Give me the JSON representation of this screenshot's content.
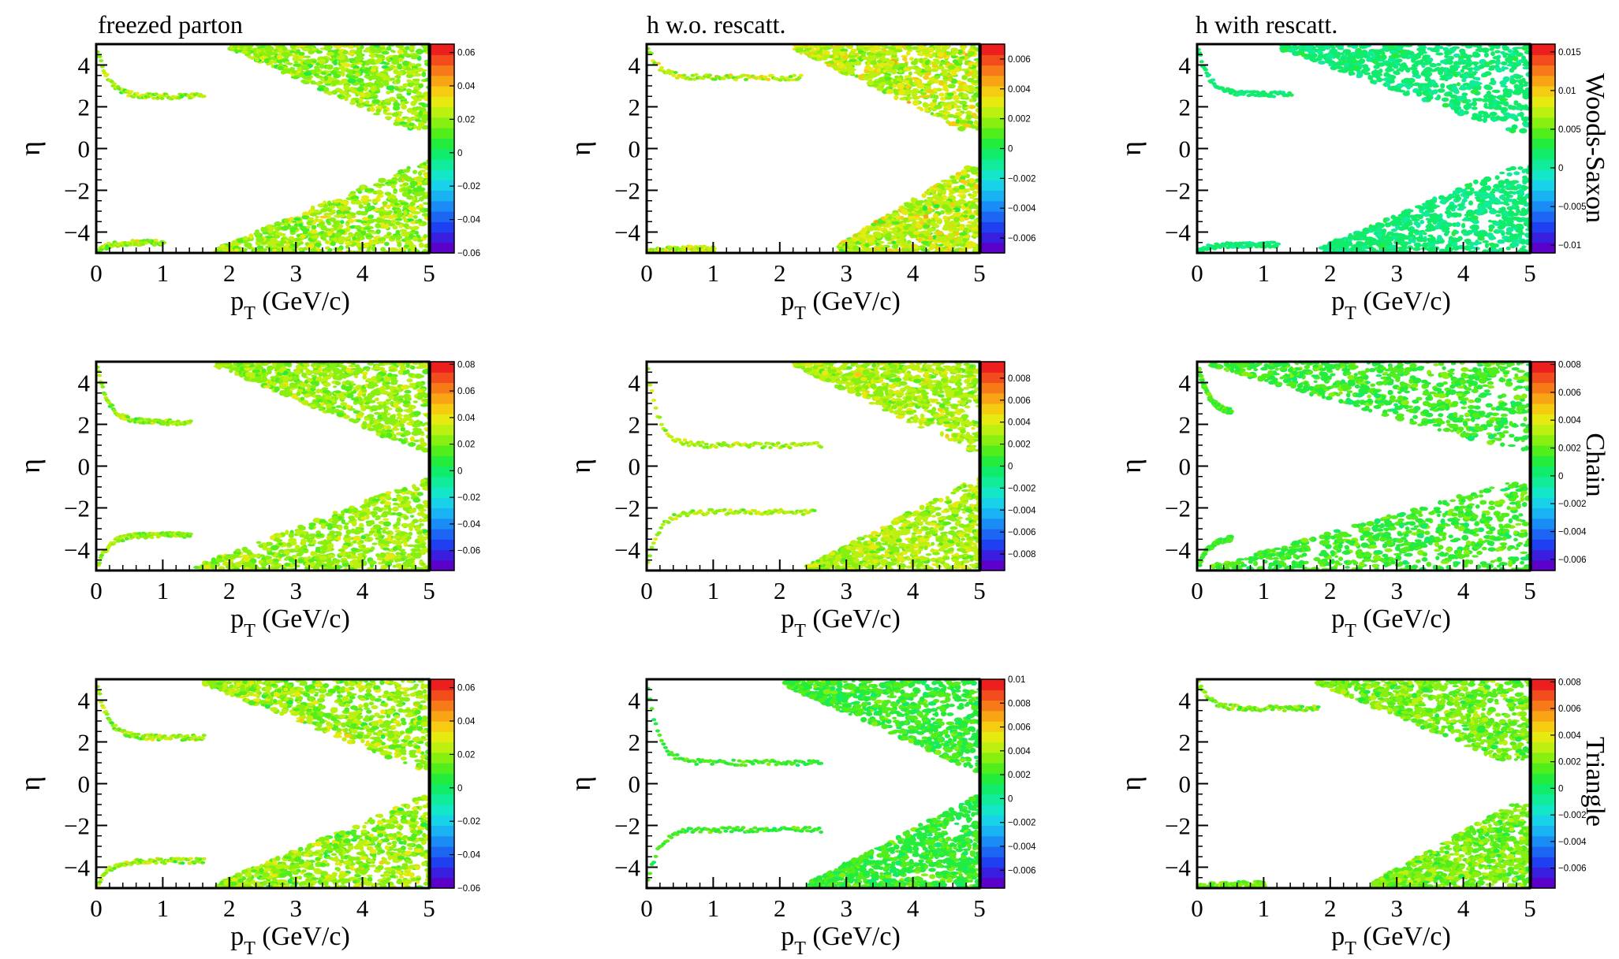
{
  "figure": {
    "column_titles": [
      "freezed parton",
      "h w.o. rescatt.",
      "h with rescatt."
    ],
    "row_labels": [
      "Woods-Saxon",
      "Chain",
      "Triangle"
    ]
  },
  "chart_data": [
    {
      "type": "heatmap",
      "panel": "freezed parton / Woods-Saxon",
      "xlabel": "p",
      "xlabel_sub": "T",
      "xlabel_unit": "(GeV/c)",
      "ylabel": "η",
      "xlim": [
        0,
        5
      ],
      "ylim": [
        -5,
        5
      ],
      "x_ticks": [
        "0",
        "1",
        "2",
        "3",
        "4",
        "5"
      ],
      "y_ticks": [
        "4",
        "2",
        "0",
        "−2",
        "−4"
      ],
      "colorbar": {
        "min": -0.06,
        "max": 0.065,
        "ticks": [
          "0.06",
          "0.04",
          "0.02",
          "0",
          "−0.02",
          "−0.04",
          "−0.06"
        ]
      },
      "pattern": {
        "line_top_y": 2.5,
        "line_top_x_end": 1.6,
        "line_bot_y": -4.5,
        "line_bot_x_end": 1.0,
        "bulk_start_top": 2.0,
        "bulk_start_bot": 1.8,
        "gap": 0.5,
        "mean": 0.02,
        "spread": 0.012
      }
    },
    {
      "type": "heatmap",
      "panel": "h w.o. rescatt. / Woods-Saxon",
      "xlabel": "p",
      "xlabel_sub": "T",
      "xlabel_unit": "(GeV/c)",
      "ylabel": "η",
      "xlim": [
        0,
        5
      ],
      "ylim": [
        -5,
        5
      ],
      "x_ticks": [
        "0",
        "1",
        "2",
        "3",
        "4",
        "5"
      ],
      "y_ticks": [
        "4",
        "2",
        "0",
        "−2",
        "−4"
      ],
      "colorbar": {
        "min": -0.007,
        "max": 0.007,
        "ticks": [
          "0.006",
          "0.004",
          "0.002",
          "0",
          "−0.002",
          "−0.004",
          "−0.006"
        ]
      },
      "pattern": {
        "line_top_y": 3.4,
        "line_top_x_end": 2.3,
        "line_bot_y": -4.8,
        "line_bot_x_end": 1.0,
        "bulk_start_top": 2.2,
        "bulk_start_bot": 2.8,
        "gap": 0.9,
        "mean": 0.0025,
        "spread": 0.0015
      }
    },
    {
      "type": "heatmap",
      "panel": "h with rescatt. / Woods-Saxon",
      "xlabel": "p",
      "xlabel_sub": "T",
      "xlabel_unit": "(GeV/c)",
      "ylabel": "η",
      "xlim": [
        0,
        5
      ],
      "ylim": [
        -5,
        5
      ],
      "x_ticks": [
        "0",
        "1",
        "2",
        "3",
        "4",
        "5"
      ],
      "y_ticks": [
        "4",
        "2",
        "0",
        "−2",
        "−4"
      ],
      "colorbar": {
        "min": -0.011,
        "max": 0.016,
        "ticks": [
          "0.015",
          "0.01",
          "0.005",
          "0",
          "−0.005",
          "−0.01"
        ]
      },
      "pattern": {
        "line_top_y": 2.6,
        "line_top_x_end": 1.4,
        "line_bot_y": -4.6,
        "line_bot_x_end": 1.2,
        "bulk_start_top": 1.2,
        "bulk_start_bot": 1.8,
        "gap": 0.8,
        "mean": 0.0015,
        "spread": 0.0012
      }
    },
    {
      "type": "heatmap",
      "panel": "freezed parton / Chain",
      "xlabel": "p",
      "xlabel_sub": "T",
      "xlabel_unit": "(GeV/c)",
      "ylabel": "η",
      "xlim": [
        0,
        5
      ],
      "ylim": [
        -5,
        5
      ],
      "x_ticks": [
        "0",
        "1",
        "2",
        "3",
        "4",
        "5"
      ],
      "y_ticks": [
        "4",
        "2",
        "0",
        "−2",
        "−4"
      ],
      "colorbar": {
        "min": -0.075,
        "max": 0.082,
        "ticks": [
          "0.08",
          "0.06",
          "0.04",
          "0.02",
          "0",
          "−0.02",
          "−0.04",
          "−0.06"
        ]
      },
      "pattern": {
        "line_top_y": 2.1,
        "line_top_x_end": 1.4,
        "line_bot_y": -3.3,
        "line_bot_x_end": 1.4,
        "bulk_start_top": 1.8,
        "bulk_start_bot": 1.5,
        "gap": 0.6,
        "mean": 0.025,
        "spread": 0.012
      }
    },
    {
      "type": "heatmap",
      "panel": "h w.o. rescatt. / Chain",
      "xlabel": "p",
      "xlabel_sub": "T",
      "xlabel_unit": "(GeV/c)",
      "ylabel": "η",
      "xlim": [
        0,
        5
      ],
      "ylim": [
        -5,
        5
      ],
      "x_ticks": [
        "0",
        "1",
        "2",
        "3",
        "4",
        "5"
      ],
      "y_ticks": [
        "4",
        "2",
        "0",
        "−2",
        "−4"
      ],
      "colorbar": {
        "min": -0.0095,
        "max": 0.0095,
        "ticks": [
          "0.008",
          "0.006",
          "0.004",
          "0.002",
          "0",
          "−0.002",
          "−0.004",
          "−0.006",
          "−0.008"
        ]
      },
      "pattern": {
        "line_top_y": 1.0,
        "line_top_x_end": 2.6,
        "line_bot_y": -2.2,
        "line_bot_x_end": 2.5,
        "bulk_start_top": 2.2,
        "bulk_start_bot": 2.4,
        "gap": 0.6,
        "mean": 0.003,
        "spread": 0.0015
      }
    },
    {
      "type": "heatmap",
      "panel": "h with rescatt. / Chain",
      "xlabel": "p",
      "xlabel_sub": "T",
      "xlabel_unit": "(GeV/c)",
      "ylabel": "η",
      "xlim": [
        0,
        5
      ],
      "ylim": [
        -5,
        5
      ],
      "x_ticks": [
        "0",
        "1",
        "2",
        "3",
        "4",
        "5"
      ],
      "y_ticks": [
        "4",
        "2",
        "0",
        "−2",
        "−4"
      ],
      "colorbar": {
        "min": -0.0068,
        "max": 0.0082,
        "ticks": [
          "0.008",
          "0.006",
          "0.004",
          "0.002",
          "0",
          "−0.002",
          "−0.004",
          "−0.006"
        ]
      },
      "pattern": {
        "line_top_y": 2.5,
        "line_top_x_end": 0.5,
        "line_bot_y": -3.4,
        "line_bot_x_end": 0.5,
        "bulk_start_top": 0.2,
        "bulk_start_bot": 0.2,
        "gap": 0.8,
        "mean": 0.0015,
        "spread": 0.001
      }
    },
    {
      "type": "heatmap",
      "panel": "freezed parton / Triangle",
      "xlabel": "p",
      "xlabel_sub": "T",
      "xlabel_unit": "(GeV/c)",
      "ylabel": "η",
      "xlim": [
        0,
        5
      ],
      "ylim": [
        -5,
        5
      ],
      "x_ticks": [
        "0",
        "1",
        "2",
        "3",
        "4",
        "5"
      ],
      "y_ticks": [
        "4",
        "2",
        "0",
        "−2",
        "−4"
      ],
      "colorbar": {
        "min": -0.06,
        "max": 0.065,
        "ticks": [
          "0.06",
          "0.04",
          "0.02",
          "0",
          "−0.02",
          "−0.04",
          "−0.06"
        ]
      },
      "pattern": {
        "line_top_y": 2.2,
        "line_top_x_end": 1.6,
        "line_bot_y": -3.7,
        "line_bot_x_end": 1.6,
        "bulk_start_top": 1.6,
        "bulk_start_bot": 1.8,
        "gap": 0.5,
        "mean": 0.02,
        "spread": 0.012
      }
    },
    {
      "type": "heatmap",
      "panel": "h w.o. rescatt. / Triangle",
      "xlabel": "p",
      "xlabel_sub": "T",
      "xlabel_unit": "(GeV/c)",
      "ylabel": "η",
      "xlim": [
        0,
        5
      ],
      "ylim": [
        -5,
        5
      ],
      "x_ticks": [
        "0",
        "1",
        "2",
        "3",
        "4",
        "5"
      ],
      "y_ticks": [
        "4",
        "2",
        "0",
        "−2",
        "−4"
      ],
      "colorbar": {
        "min": -0.0075,
        "max": 0.01,
        "ticks": [
          "0.01",
          "0.008",
          "0.006",
          "0.004",
          "0.002",
          "0",
          "−0.002",
          "−0.004",
          "−0.006"
        ]
      },
      "pattern": {
        "line_top_y": 1.0,
        "line_top_x_end": 2.6,
        "line_bot_y": -2.2,
        "line_bot_x_end": 2.6,
        "bulk_start_top": 2.0,
        "bulk_start_bot": 2.4,
        "gap": 0.6,
        "mean": 0.002,
        "spread": 0.0012
      }
    },
    {
      "type": "heatmap",
      "panel": "h with rescatt. / Triangle",
      "xlabel": "p",
      "xlabel_sub": "T",
      "xlabel_unit": "(GeV/c)",
      "ylabel": "η",
      "xlim": [
        0,
        5
      ],
      "ylim": [
        -5,
        5
      ],
      "x_ticks": [
        "0",
        "1",
        "2",
        "3",
        "4",
        "5"
      ],
      "y_ticks": [
        "4",
        "2",
        "0",
        "−2",
        "−4"
      ],
      "colorbar": {
        "min": -0.0075,
        "max": 0.0082,
        "ticks": [
          "0.008",
          "0.006",
          "0.004",
          "0.002",
          "0",
          "−0.002",
          "−0.004",
          "−0.006"
        ]
      },
      "pattern": {
        "line_top_y": 3.6,
        "line_top_x_end": 1.8,
        "line_bot_y": -4.8,
        "line_bot_x_end": 1.0,
        "bulk_start_top": 1.8,
        "bulk_start_bot": 2.6,
        "gap": 1.0,
        "mean": 0.002,
        "spread": 0.0012
      }
    }
  ]
}
